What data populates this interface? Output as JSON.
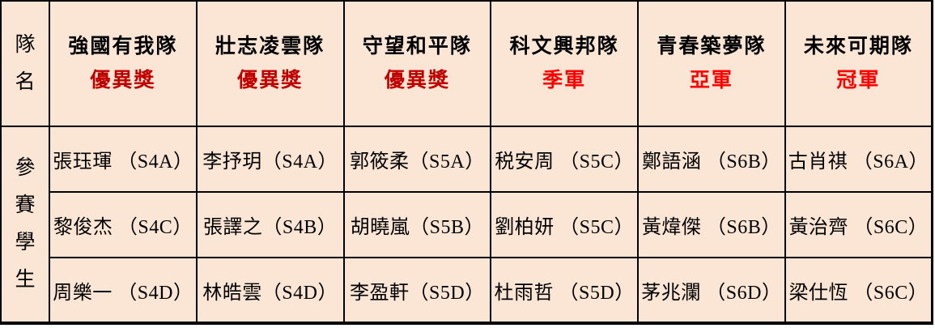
{
  "colors": {
    "table_background": "#FBE6D5",
    "border": "#000000",
    "text": "#000000",
    "award_excellence_red": "#C00000",
    "award_rank_red": "#FF0000"
  },
  "row_headers": {
    "team_name_label": "隊\n名",
    "students_label": "參\n賽\n學\n生"
  },
  "teams": [
    {
      "name": "強國有我隊",
      "award": "優異獎",
      "award_color": "#C00000",
      "students": [
        "張珏琿 （S4A）",
        "黎俊杰 （S4C）",
        "周樂一 （S4D）"
      ]
    },
    {
      "name": "壯志凌雲隊",
      "award": "優異獎",
      "award_color": "#C00000",
      "students": [
        "李抒玥（S4A）",
        "張譯之（S4B）",
        "林皓雲（S4D）"
      ]
    },
    {
      "name": "守望和平隊",
      "award": "優異獎",
      "award_color": "#C00000",
      "students": [
        "郭筱柔（S5A）",
        "胡曉嵐（S5B）",
        "李盈軒（S5D）"
      ]
    },
    {
      "name": "科文興邦隊",
      "award": "季軍",
      "award_color": "#FF0000",
      "students": [
        "税安周 （S5C）",
        "劉柏妍 （S5C）",
        "杜雨哲 （S5D）"
      ]
    },
    {
      "name": "青春築夢隊",
      "award": "亞軍",
      "award_color": "#FF0000",
      "students": [
        "鄭語涵 （S6B）",
        "黃煒傑 （S6B）",
        "茅兆瀾 （S6D）"
      ]
    },
    {
      "name": "未來可期隊",
      "award": "冠軍",
      "award_color": "#FF0000",
      "students": [
        "古肖祺 （S6A）",
        "黃治齊 （S6C）",
        "梁仕恆 （S6C）"
      ]
    }
  ]
}
